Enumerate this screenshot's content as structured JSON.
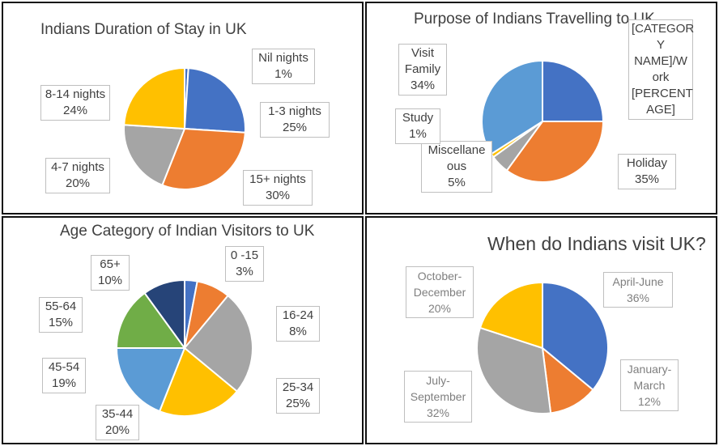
{
  "chart_data": [
    {
      "type": "pie",
      "title": "Indians Duration of Stay in UK",
      "categories": [
        "Nil nights",
        "1-3 nights",
        "15+ nights",
        "4-7 nights",
        "8-14 nights"
      ],
      "values": [
        1,
        25,
        30,
        20,
        24
      ],
      "labels": [
        "1%",
        "25%",
        "30%",
        "20%",
        "24%"
      ],
      "colors": [
        "#4472C4",
        "#4472C4",
        "#ED7D31",
        "#A5A5A5",
        "#FFC000"
      ]
    },
    {
      "type": "pie",
      "title": "Purpose of Indians Travelling to UK",
      "categories": [
        "[CATEGORY NAME]/Work",
        "Holiday",
        "Miscellaneous",
        "Study",
        "Visit Family"
      ],
      "values": [
        25,
        35,
        5,
        1,
        34
      ],
      "labels": [
        "[PERCENTAGE]",
        "35%",
        "5%",
        "1%",
        "34%"
      ],
      "label_lines": [
        [
          "[CATEGOR",
          "Y",
          "NAME]/W",
          "ork",
          "[PERCENT",
          "AGE]"
        ],
        [
          "Holiday",
          "35%"
        ],
        [
          "Miscellane",
          "ous",
          "5%"
        ],
        [
          "Study",
          "1%"
        ],
        [
          "Visit",
          "Family",
          "34%"
        ]
      ],
      "colors": [
        "#4472C4",
        "#ED7D31",
        "#A5A5A5",
        "#FFC000",
        "#5B9BD5"
      ]
    },
    {
      "type": "pie",
      "title": "Age Category of Indian Visitors to UK",
      "categories": [
        "0 -15",
        "16-24",
        "25-34",
        "35-44",
        "45-54",
        "55-64",
        "65+"
      ],
      "values": [
        3,
        8,
        25,
        20,
        19,
        15,
        10
      ],
      "labels": [
        "3%",
        "8%",
        "25%",
        "20%",
        "19%",
        "15%",
        "10%"
      ],
      "colors": [
        "#4472C4",
        "#ED7D31",
        "#A5A5A5",
        "#FFC000",
        "#5B9BD5",
        "#70AD47",
        "#264478"
      ]
    },
    {
      "type": "pie",
      "title": "When do Indians visit UK?",
      "categories": [
        "April-June",
        "January-March",
        "July-September",
        "October-December"
      ],
      "values": [
        36,
        12,
        32,
        20
      ],
      "labels": [
        "36%",
        "12%",
        "32%",
        "20%"
      ],
      "label_lines": [
        [
          "April-June",
          "36%"
        ],
        [
          "January-",
          "March",
          "12%"
        ],
        [
          "July-",
          "September",
          "32%"
        ],
        [
          "October-",
          "December",
          "20%"
        ]
      ],
      "colors": [
        "#4472C4",
        "#ED7D31",
        "#A5A5A5",
        "#FFC000"
      ]
    }
  ]
}
